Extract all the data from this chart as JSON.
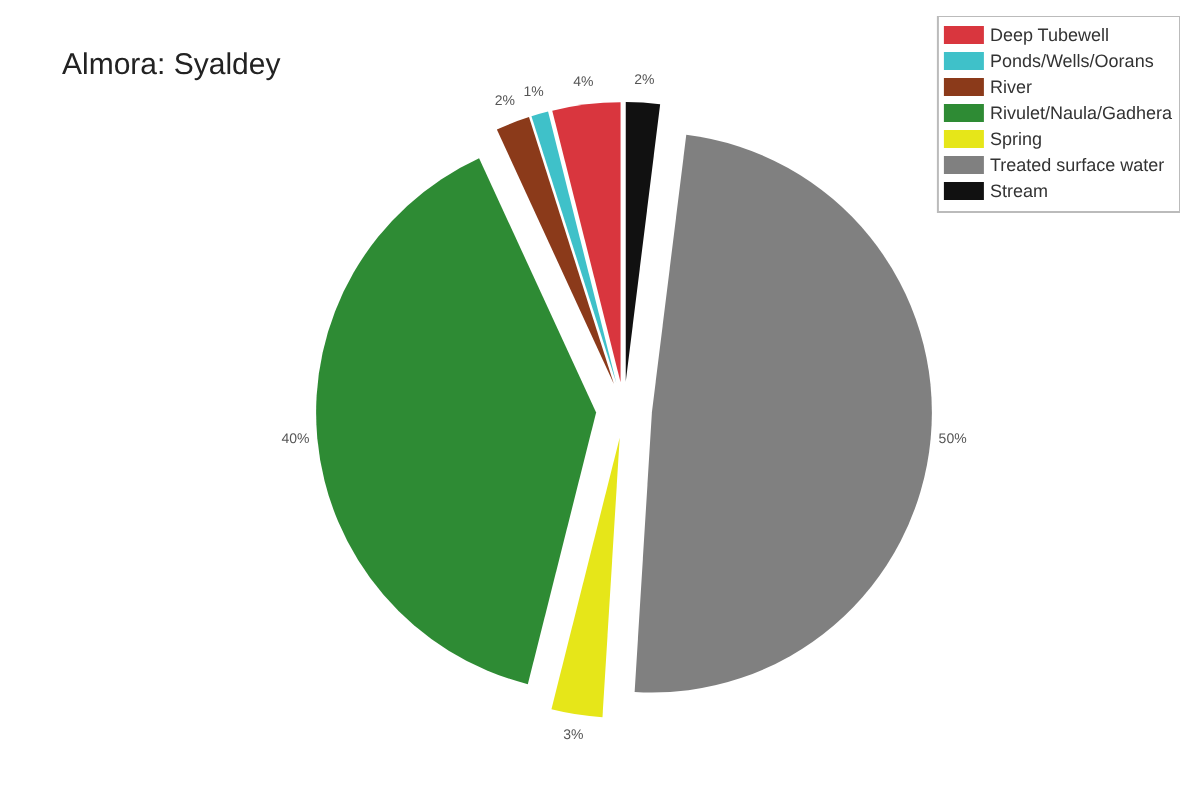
{
  "chart_data": {
    "type": "pie",
    "title": "Almora: Syaldey",
    "categories": [
      "Deep Tubewell",
      "Ponds/Wells/Oorans",
      "River",
      "Rivulet/Naula/Gadhera",
      "Spring",
      "Treated surface water",
      "Stream"
    ],
    "values": [
      4,
      1,
      2,
      40,
      3,
      50,
      2
    ],
    "colors": [
      "#d9363e",
      "#3fc1c9",
      "#8b3a1a",
      "#2e8b34",
      "#e6e619",
      "#808080",
      "#111111"
    ],
    "value_labels": [
      "4%",
      "1%",
      "2%",
      "40%",
      "3%",
      "50%",
      "2%"
    ],
    "legend": "top right"
  }
}
